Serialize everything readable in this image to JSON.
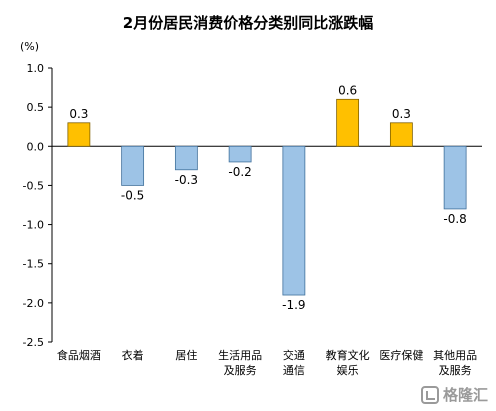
{
  "chart_data": {
    "type": "bar",
    "title": "2月份居民消费价格分类别同比涨跌幅",
    "ylabel": "(%)",
    "xlabel": "",
    "ylim": [
      -2.5,
      1.0
    ],
    "yticks": [
      "1.0",
      "0.5",
      "0.0",
      "-0.5",
      "-1.0",
      "-1.5",
      "-2.0",
      "-2.5"
    ],
    "grid": false,
    "categories": [
      [
        "食品烟酒"
      ],
      [
        "衣着"
      ],
      [
        "居住"
      ],
      [
        "生活用品",
        "及服务"
      ],
      [
        "交通",
        "通信"
      ],
      [
        "教育文化",
        "娱乐"
      ],
      [
        "医疗保健"
      ],
      [
        "其他用品",
        "及服务"
      ]
    ],
    "values": [
      0.3,
      -0.5,
      -0.3,
      -0.2,
      -1.9,
      0.6,
      0.3,
      -0.8
    ],
    "value_labels": [
      "0.3",
      "-0.5",
      "-0.3",
      "-0.2",
      "-1.9",
      "0.6",
      "0.3",
      "-0.8"
    ],
    "colors": {
      "positive": "#FFC000",
      "negative": "#9DC3E6",
      "positive_stroke": "#7F6000",
      "negative_stroke": "#41719C",
      "axis": "#000000"
    }
  },
  "watermark": {
    "text": "格隆汇",
    "icon": "gelonghui-logo-icon"
  }
}
